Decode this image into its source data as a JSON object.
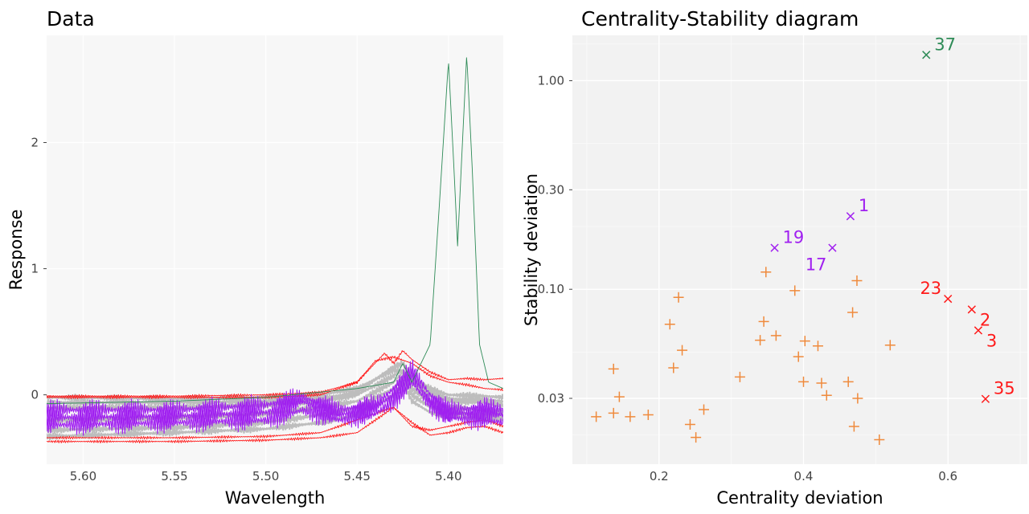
{
  "chart_data": [
    {
      "type": "line",
      "title": "Data",
      "xlabel": "Wavelength",
      "ylabel": "Response",
      "x_reversed": true,
      "xlim": [
        5.62,
        5.37
      ],
      "ylim": [
        -0.55,
        2.85
      ],
      "xticks": [
        "5.60",
        "5.55",
        "5.50",
        "5.45",
        "5.40"
      ],
      "xtick_values": [
        5.6,
        5.55,
        5.5,
        5.45,
        5.4
      ],
      "yticks": [
        "0",
        "1",
        "2"
      ],
      "ytick_values": [
        0,
        1,
        2
      ],
      "grid": true,
      "series": [
        {
          "group": "outlier-green",
          "color": "#2e8b57",
          "x": [
            5.62,
            5.55,
            5.5,
            5.45,
            5.43,
            5.425,
            5.42,
            5.41,
            5.405,
            5.4,
            5.397,
            5.395,
            5.393,
            5.39,
            5.387,
            5.383,
            5.378,
            5.37
          ],
          "y": [
            -0.07,
            -0.05,
            -0.02,
            0.05,
            0.1,
            0.25,
            0.1,
            0.4,
            1.5,
            2.65,
            1.8,
            1.18,
            1.8,
            2.7,
            1.8,
            0.4,
            0.1,
            0.05
          ]
        },
        {
          "group": "outlier-red",
          "color": "#ff1a1a",
          "x": [
            5.62,
            5.55,
            5.5,
            5.47,
            5.45,
            5.435,
            5.43,
            5.425,
            5.42,
            5.41,
            5.4,
            5.39,
            5.38,
            5.37
          ],
          "y": [
            -0.01,
            -0.01,
            0.0,
            0.02,
            0.1,
            0.33,
            0.25,
            0.35,
            0.28,
            0.18,
            0.12,
            0.13,
            0.12,
            0.13
          ]
        },
        {
          "group": "outlier-red",
          "color": "#ff1a1a",
          "x": [
            5.62,
            5.55,
            5.5,
            5.47,
            5.45,
            5.44,
            5.43,
            5.42,
            5.41,
            5.4,
            5.39,
            5.38,
            5.37
          ],
          "y": [
            -0.02,
            -0.02,
            -0.02,
            0.0,
            0.1,
            0.27,
            0.3,
            0.25,
            0.15,
            0.1,
            0.08,
            0.05,
            0.04
          ]
        },
        {
          "group": "outlier-red",
          "color": "#ff1a1a",
          "x": [
            5.62,
            5.55,
            5.5,
            5.47,
            5.45,
            5.43,
            5.42,
            5.41,
            5.4,
            5.39,
            5.38,
            5.37
          ],
          "y": [
            -0.34,
            -0.34,
            -0.33,
            -0.3,
            -0.2,
            -0.1,
            -0.25,
            -0.28,
            -0.25,
            -0.22,
            -0.2,
            -0.25
          ]
        },
        {
          "group": "outlier-red",
          "color": "#ff1a1a",
          "x": [
            5.62,
            5.55,
            5.5,
            5.47,
            5.45,
            5.43,
            5.42,
            5.41,
            5.4,
            5.39,
            5.38,
            5.37
          ],
          "y": [
            -0.37,
            -0.37,
            -0.36,
            -0.34,
            -0.3,
            -0.1,
            -0.22,
            -0.32,
            -0.3,
            -0.26,
            -0.25,
            -0.3
          ]
        },
        {
          "group": "outlier-purple",
          "color": "#a020f0",
          "x": [
            5.62,
            5.55,
            5.5,
            5.48,
            5.46,
            5.44,
            5.43,
            5.42,
            5.41,
            5.4,
            5.38,
            5.37
          ],
          "y": [
            -0.12,
            -0.12,
            -0.08,
            -0.02,
            -0.12,
            -0.08,
            0.05,
            0.2,
            0.0,
            -0.12,
            -0.1,
            -0.12
          ]
        },
        {
          "group": "outlier-purple",
          "color": "#a020f0",
          "x": [
            5.62,
            5.55,
            5.5,
            5.48,
            5.46,
            5.44,
            5.43,
            5.42,
            5.41,
            5.4,
            5.38,
            5.37
          ],
          "y": [
            -0.18,
            -0.17,
            -0.14,
            -0.05,
            -0.16,
            -0.1,
            0.0,
            0.15,
            -0.05,
            -0.15,
            -0.14,
            -0.16
          ]
        },
        {
          "group": "outlier-purple",
          "color": "#a020f0",
          "x": [
            5.62,
            5.55,
            5.5,
            5.48,
            5.46,
            5.44,
            5.43,
            5.42,
            5.41,
            5.4,
            5.38,
            5.37
          ],
          "y": [
            -0.24,
            -0.22,
            -0.2,
            -0.12,
            -0.2,
            -0.15,
            -0.05,
            0.1,
            -0.08,
            -0.18,
            -0.2,
            -0.22
          ]
        },
        {
          "group": "normal",
          "color": "#bdbdbd",
          "x": [
            5.62,
            5.55,
            5.5,
            5.47,
            5.45,
            5.43,
            5.425,
            5.42,
            5.41,
            5.4,
            5.38,
            5.37
          ],
          "y": [
            -0.02,
            -0.03,
            -0.02,
            0.0,
            0.05,
            0.2,
            0.18,
            0.12,
            0.05,
            0.0,
            -0.01,
            -0.02
          ]
        },
        {
          "group": "normal",
          "color": "#bdbdbd",
          "x": [
            5.62,
            5.55,
            5.5,
            5.47,
            5.45,
            5.43,
            5.425,
            5.42,
            5.41,
            5.4,
            5.38,
            5.37
          ],
          "y": [
            -0.1,
            -0.1,
            -0.08,
            -0.05,
            0.0,
            0.15,
            0.2,
            0.1,
            0.0,
            -0.05,
            -0.06,
            -0.08
          ]
        },
        {
          "group": "normal",
          "color": "#bdbdbd",
          "x": [
            5.62,
            5.55,
            5.5,
            5.47,
            5.45,
            5.43,
            5.425,
            5.42,
            5.41,
            5.4,
            5.38,
            5.37
          ],
          "y": [
            -0.2,
            -0.18,
            -0.15,
            -0.1,
            -0.05,
            0.1,
            0.18,
            0.05,
            -0.05,
            -0.1,
            -0.12,
            -0.14
          ]
        },
        {
          "group": "normal",
          "color": "#bdbdbd",
          "x": [
            5.62,
            5.55,
            5.5,
            5.47,
            5.45,
            5.43,
            5.425,
            5.42,
            5.41,
            5.4,
            5.38,
            5.37
          ],
          "y": [
            -0.28,
            -0.26,
            -0.22,
            -0.16,
            -0.1,
            0.05,
            0.15,
            0.0,
            -0.1,
            -0.14,
            -0.16,
            -0.18
          ]
        },
        {
          "group": "normal",
          "color": "#bdbdbd",
          "x": [
            5.62,
            5.55,
            5.5,
            5.47,
            5.45,
            5.43,
            5.425,
            5.42,
            5.41,
            5.4,
            5.38,
            5.37
          ],
          "y": [
            -0.33,
            -0.3,
            -0.27,
            -0.22,
            -0.16,
            0.0,
            0.1,
            -0.05,
            -0.14,
            -0.17,
            -0.19,
            -0.2
          ]
        },
        {
          "group": "normal",
          "color": "#bdbdbd",
          "x": [
            5.62,
            5.55,
            5.5,
            5.47,
            5.45,
            5.43,
            5.425,
            5.42,
            5.41,
            5.4,
            5.38,
            5.37
          ],
          "y": [
            -0.06,
            -0.06,
            -0.05,
            -0.03,
            0.02,
            0.22,
            0.25,
            0.15,
            0.02,
            -0.03,
            -0.04,
            -0.05
          ]
        }
      ]
    },
    {
      "type": "scatter",
      "title": "Centrality-Stability diagram",
      "xlabel": "Centrality deviation",
      "ylabel": "Stability deviation",
      "y_scale": "log",
      "xlim": [
        0.08,
        0.71
      ],
      "ylim": [
        0.0145,
        1.65
      ],
      "xticks": [
        "0.2",
        "0.4",
        "0.6"
      ],
      "xtick_values": [
        0.2,
        0.4,
        0.6
      ],
      "yticks": [
        "0.03",
        "0.10",
        "0.30",
        "1.00"
      ],
      "ytick_values": [
        0.03,
        0.1,
        0.3,
        1.0
      ],
      "grid": true,
      "groups": [
        {
          "kind": "regular",
          "marker": "plus",
          "color": "#ef8a3c",
          "points": [
            [
              0.113,
              0.0245
            ],
            [
              0.137,
              0.0255
            ],
            [
              0.137,
              0.0415
            ],
            [
              0.145,
              0.0305
            ],
            [
              0.16,
              0.0245
            ],
            [
              0.185,
              0.025
            ],
            [
              0.215,
              0.068
            ],
            [
              0.22,
              0.042
            ],
            [
              0.227,
              0.0915
            ],
            [
              0.232,
              0.051
            ],
            [
              0.243,
              0.0225
            ],
            [
              0.251,
              0.0195
            ],
            [
              0.262,
              0.0265
            ],
            [
              0.312,
              0.038
            ],
            [
              0.34,
              0.057
            ],
            [
              0.345,
              0.07
            ],
            [
              0.348,
              0.121
            ],
            [
              0.362,
              0.06
            ],
            [
              0.388,
              0.0985
            ],
            [
              0.393,
              0.0475
            ],
            [
              0.4,
              0.036
            ],
            [
              0.402,
              0.0565
            ],
            [
              0.42,
              0.0535
            ],
            [
              0.425,
              0.0355
            ],
            [
              0.432,
              0.031
            ],
            [
              0.462,
              0.036
            ],
            [
              0.468,
              0.0775
            ],
            [
              0.47,
              0.022
            ],
            [
              0.474,
              0.11
            ],
            [
              0.475,
              0.03
            ],
            [
              0.505,
              0.019
            ],
            [
              0.52,
              0.054
            ]
          ]
        },
        {
          "kind": "outlier",
          "marker": "cross",
          "color": "#a020f0",
          "points": [
            {
              "x": 0.465,
              "y": 0.224,
              "label": "1",
              "anchor": "upper-right"
            },
            {
              "x": 0.36,
              "y": 0.158,
              "label": "19",
              "anchor": "upper-right"
            },
            {
              "x": 0.44,
              "y": 0.158,
              "label": "17",
              "anchor": "lower-left"
            }
          ]
        },
        {
          "kind": "outlier",
          "marker": "cross",
          "color": "#ff1a1a",
          "points": [
            {
              "x": 0.6,
              "y": 0.09,
              "label": "23",
              "anchor": "upper-left"
            },
            {
              "x": 0.633,
              "y": 0.08,
              "label": "2",
              "anchor": "lower-right"
            },
            {
              "x": 0.642,
              "y": 0.0635,
              "label": "3",
              "anchor": "lower-right"
            },
            {
              "x": 0.652,
              "y": 0.0298,
              "label": "35",
              "anchor": "upper-right"
            }
          ]
        },
        {
          "kind": "outlier",
          "marker": "cross",
          "color": "#2e8b57",
          "points": [
            {
              "x": 0.57,
              "y": 1.33,
              "label": "37",
              "anchor": "upper-right"
            }
          ]
        }
      ]
    }
  ]
}
